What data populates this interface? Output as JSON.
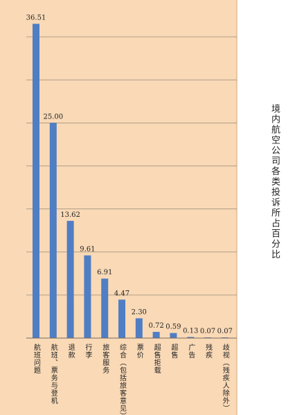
{
  "chart_data": {
    "type": "bar",
    "title": "境内航空公司各类投诉所占百分比",
    "xlabel": "",
    "ylabel": "",
    "categories": [
      "航班问题",
      "航班、票务与登机",
      "退款",
      "行李",
      "旅客服务",
      "综合（包括旅客意见）",
      "票价",
      "超售拒载",
      "超售",
      "广告",
      "残疾",
      "歧视（残疾人除外）"
    ],
    "series": [
      {
        "values": [
          36.51,
          25.0,
          13.62,
          9.61,
          6.91,
          4.47,
          2.3,
          0.72,
          0.59,
          0.13,
          0.07,
          0.07
        ]
      }
    ],
    "data_labels": [
      "36.51",
      "25.00",
      "13.62",
      "9.61",
      "6.91",
      "4.47",
      "2.30",
      "0.72",
      "0.59",
      "0.13",
      "0.07",
      "0.07"
    ],
    "ylim": [
      0,
      40
    ],
    "grid": true,
    "legend": "none",
    "colors": {
      "plot_background": "#f9d9b6",
      "bar": "#4f7ec4",
      "grid": "#9a8a78"
    }
  }
}
